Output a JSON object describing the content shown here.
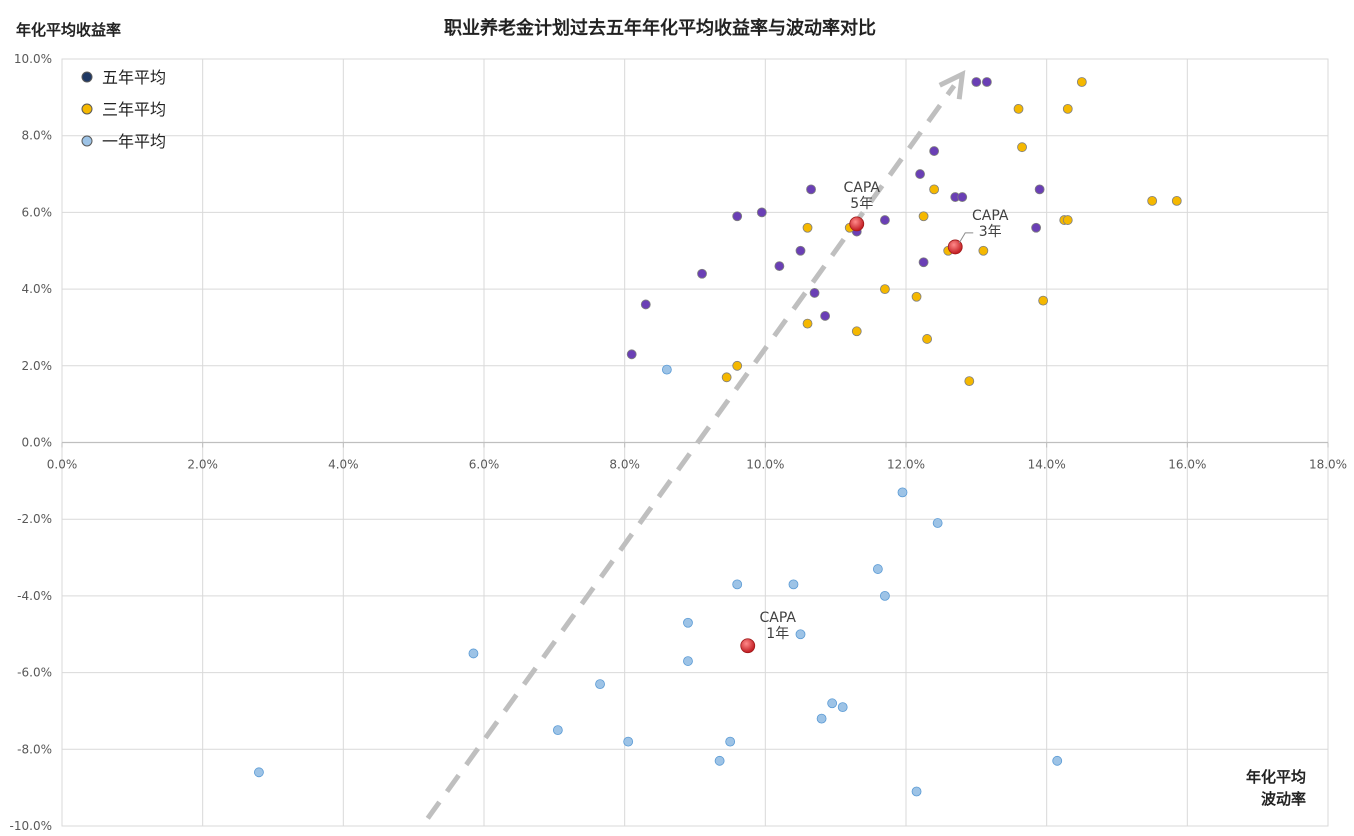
{
  "chart_data": {
    "type": "scatter",
    "title": "职业养老金计划过去五年年化平均收益率与波动率对比",
    "ylabel": "年化平均收益率",
    "xlabel_lines": [
      "年化平均",
      "波动率"
    ],
    "xlim": [
      0,
      18
    ],
    "ylim": [
      -10,
      10
    ],
    "x_ticks": [
      "0.0%",
      "2.0%",
      "4.0%",
      "6.0%",
      "8.0%",
      "10.0%",
      "12.0%",
      "14.0%",
      "16.0%",
      "18.0%"
    ],
    "y_ticks": [
      "10.0%",
      "8.0%",
      "6.0%",
      "4.0%",
      "2.0%",
      "0.0%",
      "-2.0%",
      "-4.0%",
      "-6.0%",
      "-8.0%",
      "-10.0%"
    ],
    "grid": true,
    "legend_position": "top-left",
    "series": [
      {
        "name": "五年平均",
        "color": "#6a3fb5",
        "legend_color": "#1f3864",
        "points": [
          [
            8.1,
            2.3
          ],
          [
            8.3,
            3.6
          ],
          [
            9.1,
            4.4
          ],
          [
            9.6,
            5.9
          ],
          [
            9.95,
            6.0
          ],
          [
            10.2,
            4.6
          ],
          [
            10.5,
            5.0
          ],
          [
            10.65,
            6.6
          ],
          [
            10.7,
            3.9
          ],
          [
            10.85,
            3.3
          ],
          [
            11.3,
            5.5
          ],
          [
            11.7,
            5.8
          ],
          [
            12.2,
            7.0
          ],
          [
            12.25,
            4.7
          ],
          [
            12.4,
            7.6
          ],
          [
            12.7,
            6.4
          ],
          [
            12.8,
            6.4
          ],
          [
            13.0,
            9.4
          ],
          [
            13.15,
            9.4
          ],
          [
            13.85,
            5.6
          ],
          [
            13.9,
            6.6
          ]
        ]
      },
      {
        "name": "三年平均",
        "color": "#f5b800",
        "legend_color": "#f5b800",
        "points": [
          [
            9.45,
            1.7
          ],
          [
            9.6,
            2.0
          ],
          [
            10.6,
            5.6
          ],
          [
            10.6,
            3.1
          ],
          [
            11.2,
            5.6
          ],
          [
            11.3,
            2.9
          ],
          [
            11.7,
            4.0
          ],
          [
            12.15,
            3.8
          ],
          [
            12.25,
            5.9
          ],
          [
            12.3,
            2.7
          ],
          [
            12.4,
            6.6
          ],
          [
            12.6,
            5.0
          ],
          [
            12.9,
            1.6
          ],
          [
            13.1,
            5.0
          ],
          [
            13.6,
            8.7
          ],
          [
            13.65,
            7.7
          ],
          [
            13.95,
            3.7
          ],
          [
            14.25,
            5.8
          ],
          [
            14.3,
            5.8
          ],
          [
            14.3,
            8.7
          ],
          [
            14.5,
            9.4
          ],
          [
            15.5,
            6.3
          ],
          [
            15.85,
            6.3
          ]
        ]
      },
      {
        "name": "一年平均",
        "color": "#9dc3e6",
        "legend_color": "#9dc3e6",
        "points": [
          [
            2.8,
            -8.6
          ],
          [
            5.85,
            -5.5
          ],
          [
            7.05,
            -7.5
          ],
          [
            7.65,
            -6.3
          ],
          [
            8.05,
            -7.8
          ],
          [
            8.6,
            1.9
          ],
          [
            8.9,
            -4.7
          ],
          [
            8.9,
            -5.7
          ],
          [
            9.35,
            -8.3
          ],
          [
            9.5,
            -7.8
          ],
          [
            9.6,
            -3.7
          ],
          [
            10.4,
            -3.7
          ],
          [
            10.5,
            -5.0
          ],
          [
            10.8,
            -7.2
          ],
          [
            10.95,
            -6.8
          ],
          [
            11.1,
            -6.9
          ],
          [
            11.6,
            -3.3
          ],
          [
            11.7,
            -4.0
          ],
          [
            11.95,
            -1.3
          ],
          [
            12.15,
            -9.1
          ],
          [
            12.45,
            -2.1
          ],
          [
            14.15,
            -8.3
          ]
        ]
      }
    ],
    "highlights": [
      {
        "label_lines": [
          "CAPA",
          "5年"
        ],
        "x": 11.3,
        "y": 5.7
      },
      {
        "label_lines": [
          "CAPA",
          "3年"
        ],
        "x": 12.7,
        "y": 5.1
      },
      {
        "label_lines": [
          "CAPA",
          "1年"
        ],
        "x": 9.75,
        "y": -5.3
      }
    ],
    "highlight_color": "#e03c3c",
    "trend_arrow": {
      "from": [
        5.2,
        -9.8
      ],
      "to": [
        12.8,
        9.6
      ],
      "color": "#bfbfbf"
    }
  }
}
